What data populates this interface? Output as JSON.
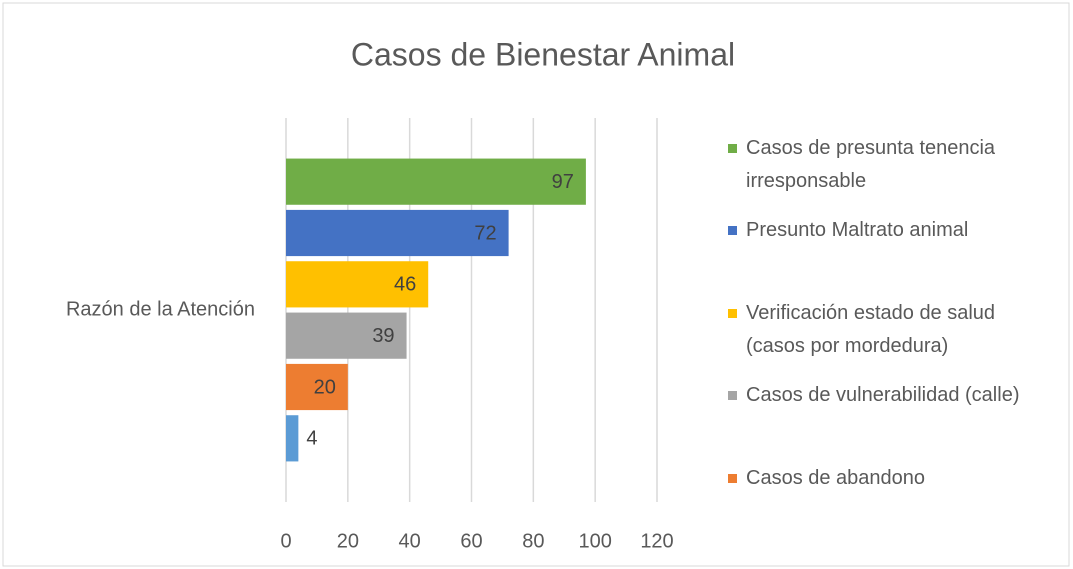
{
  "chart_data": {
    "type": "bar",
    "orientation": "horizontal",
    "title": "Casos de Bienestar Animal",
    "categories": [
      "Razón de la Atención"
    ],
    "series": [
      {
        "name": "Casos de presunta tenencia irresponsable",
        "color": "#70ad47",
        "values": [
          97
        ]
      },
      {
        "name": "Presunto Maltrato animal",
        "color": "#4472c4",
        "values": [
          72
        ]
      },
      {
        "name": "Verificación estado de salud (casos por mordedura)",
        "color": "#ffc000",
        "values": [
          46
        ]
      },
      {
        "name": "Casos de vulnerabilidad (calle)",
        "color": "#a5a5a5",
        "values": [
          39
        ]
      },
      {
        "name": "Casos de abandono",
        "color": "#ed7d31",
        "values": [
          20
        ]
      },
      {
        "name": null,
        "color": "#5b9bd5",
        "values": [
          4
        ]
      }
    ],
    "xlim": [
      0,
      120
    ],
    "xticks": [
      0,
      20,
      40,
      60,
      80,
      100,
      120
    ],
    "grid": true,
    "legend": "right"
  }
}
